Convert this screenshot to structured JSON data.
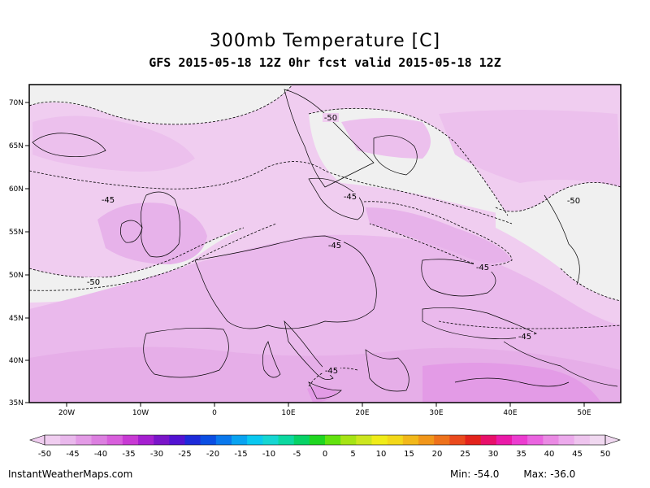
{
  "header": {
    "title": "300mb Temperature [C]",
    "subtitle": "GFS 2015-05-18 12Z 0hr fcst valid 2015-05-18 12Z"
  },
  "map": {
    "lat_labels": [
      "70N",
      "65N",
      "60N",
      "55N",
      "50N",
      "45N",
      "40N",
      "35N"
    ],
    "lon_labels": [
      "20W",
      "10W",
      "0",
      "10E",
      "20E",
      "30E",
      "40E",
      "50E"
    ],
    "contour_labels": [
      {
        "text": "-50",
        "key": "north-scandinavia"
      },
      {
        "text": "-45",
        "key": "north-atlantic"
      },
      {
        "text": "-45",
        "key": "baltic"
      },
      {
        "text": "-50",
        "key": "russia"
      },
      {
        "text": "-45",
        "key": "central-europe"
      },
      {
        "text": "-45",
        "key": "ukraine"
      },
      {
        "text": "-50",
        "key": "atlantic-south"
      },
      {
        "text": "-45",
        "key": "black-sea"
      },
      {
        "text": "-45",
        "key": "mediterranean"
      }
    ],
    "colors": {
      "land_outside": "#f0f0f0",
      "light_pink": "#f0cdf0",
      "mid_pink": "#eab9ec",
      "warm_pink": "#e39be6",
      "cold_pink": "#e6aee8"
    }
  },
  "colorbar": {
    "ticks": [
      "-50",
      "-45",
      "-40",
      "-35",
      "-30",
      "-25",
      "-20",
      "-15",
      "-10",
      "-5",
      "0",
      "5",
      "10",
      "15",
      "20",
      "25",
      "30",
      "35",
      "40",
      "45",
      "50"
    ],
    "colors": [
      "#f0cdf0",
      "#e9b8ec",
      "#e39be6",
      "#dc7fe0",
      "#d85fdc",
      "#c83ad4",
      "#a51fd0",
      "#7a15c9",
      "#5212d2",
      "#1d2ad9",
      "#0b4ee3",
      "#0a78ec",
      "#09a3f1",
      "#0ac8f0",
      "#16d6d2",
      "#0cd8a0",
      "#07d266",
      "#1fd620",
      "#62e20e",
      "#a6e414",
      "#cce61f",
      "#f0ec19",
      "#f3d819",
      "#f2b81a",
      "#f1961a",
      "#ee721c",
      "#ea4a1d",
      "#e3231c",
      "#e8106a",
      "#ea1aa8",
      "#ec3cd0",
      "#ea64e0",
      "#ea8ae4",
      "#ecaaec",
      "#eec4ee",
      "#f0d8f0"
    ]
  },
  "footer": {
    "credit": "InstantWeatherMaps.com",
    "min_label": "Min:",
    "min_value": "-54.0",
    "max_label": "Max:",
    "max_value": "-36.0"
  }
}
